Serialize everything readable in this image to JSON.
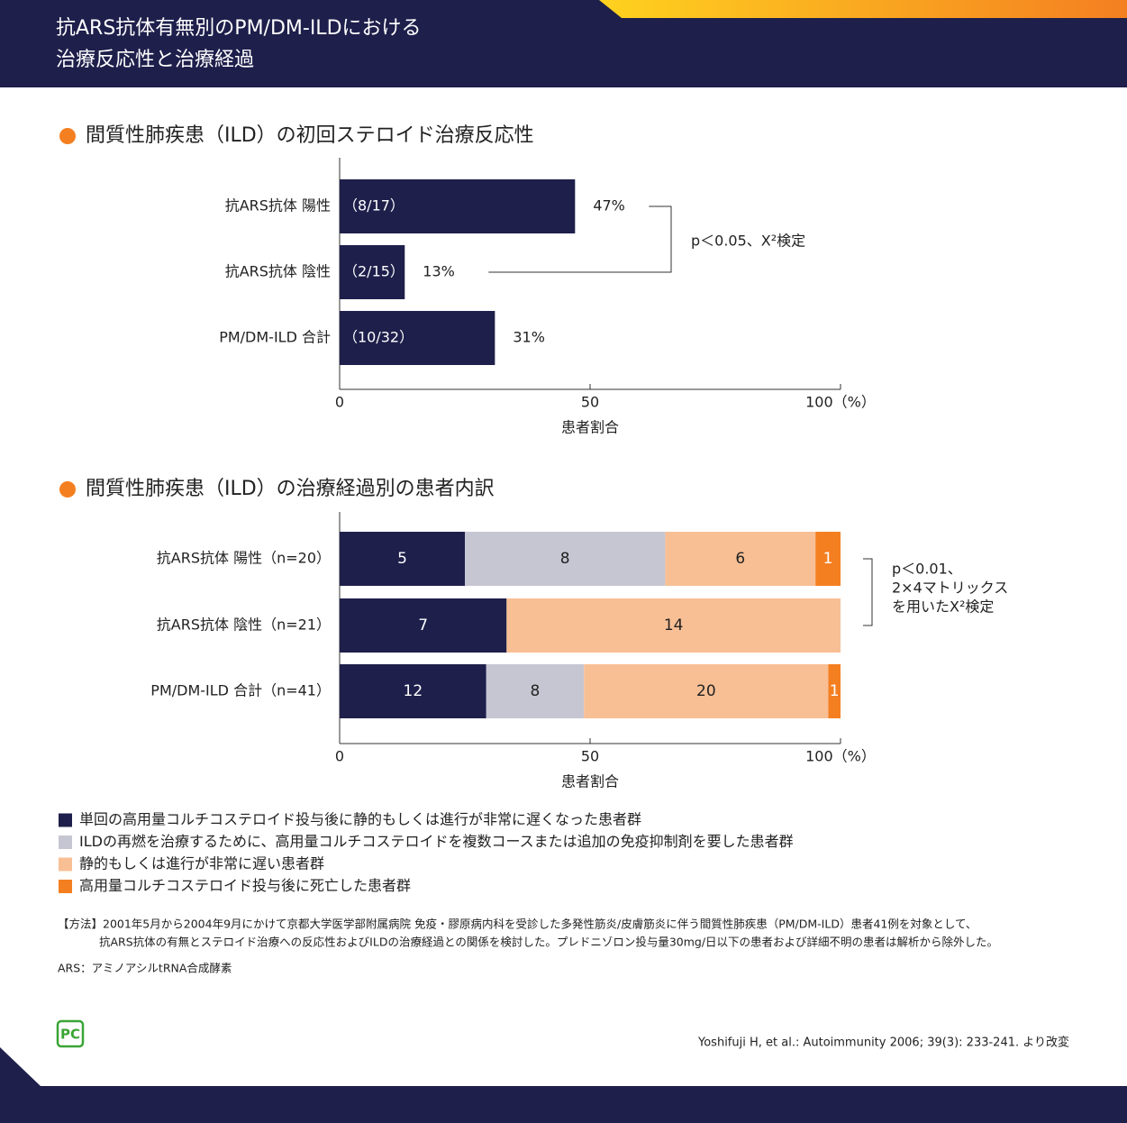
{
  "header": {
    "title_lines": [
      "抗ARS抗体有無別のPM/DM-ILDにおける",
      "治療反応性と治療経過"
    ]
  },
  "chart_data": [
    {
      "type": "bar",
      "orientation": "horizontal",
      "title": "間質性肺疾患（ILD）の初回ステロイド治療反応性",
      "categories": [
        "抗ARS抗体 陽性",
        "抗ARS抗体 陰性",
        "PM/DM-ILD 合計"
      ],
      "values": [
        47,
        13,
        31
      ],
      "value_labels": [
        "47%",
        "13%",
        "31%"
      ],
      "bar_labels": [
        "（8/17）",
        "（2/15）",
        "（10/32）"
      ],
      "color": "#1e1f4b",
      "xlim": [
        0,
        100
      ],
      "xticks": [
        0,
        50,
        {
          "value": 100,
          "label": "100（%）"
        }
      ],
      "xlabel": "患者割合",
      "annotation_lines": [
        "p＜0.05、X²検定"
      ]
    },
    {
      "type": "bar",
      "orientation": "horizontal",
      "stacked": "percent",
      "title": "間質性肺疾患（ILD）の治療経過別の患者内訳",
      "categories": [
        "抗ARS抗体 陽性（n=20）",
        "抗ARS抗体 陰性（n=21）",
        "PM/DM-ILD 合計（n=41）"
      ],
      "series": [
        {
          "name": "単回の高用量コルチコステロイド投与後に静的もしくは進行が非常に遅くなった患者群",
          "color": "#1e1f4b",
          "label_color": "#ffffff",
          "values": [
            5,
            7,
            12
          ]
        },
        {
          "name": "ILDの再燃を治療するために、高用量コルチコステロイドを複数コースまたは追加の免疫抑制剤を要した患者群",
          "color": "#c6c6d3",
          "label_color": "#222222",
          "values": [
            8,
            0,
            8
          ]
        },
        {
          "name": "静的もしくは進行が非常に遅い患者群",
          "color": "#f8bf95",
          "label_color": "#222222",
          "values": [
            6,
            14,
            20
          ]
        },
        {
          "name": "高用量コルチコステロイド投与後に死亡した患者群",
          "color": "#f47f21",
          "label_color": "#ffffff",
          "values": [
            1,
            0,
            1
          ]
        }
      ],
      "xlim": [
        0,
        100
      ],
      "xticks": [
        0,
        50,
        {
          "value": 100,
          "label": "100（%）"
        }
      ],
      "xlabel": "患者割合",
      "annotation_lines": [
        "p＜0.01、",
        "2×4マトリックス",
        "を用いたX²検定"
      ]
    }
  ],
  "notes": {
    "method_lines": [
      "【方法】2001年5月から2004年9月にかけて京都大学医学部附属病院 免疫・膠原病内科を受診した多発性筋炎/皮膚筋炎に伴う間質性肺疾患（PM/DM-ILD）患者41例を対象として、",
      "抗ARS抗体の有無とステロイド治療への反応性およびILDの治療経過との関係を検討した。プレドニゾロン投与量30mg/日以下の患者および詳細不明の患者は解析から除外した。"
    ],
    "abbreviation": "ARS：アミノアシルtRNA合成酵素"
  },
  "citation": "Yoshifuji H, et al.: Autoimmunity 2006; 39(3): 233-241. より改変",
  "logo": "PC"
}
